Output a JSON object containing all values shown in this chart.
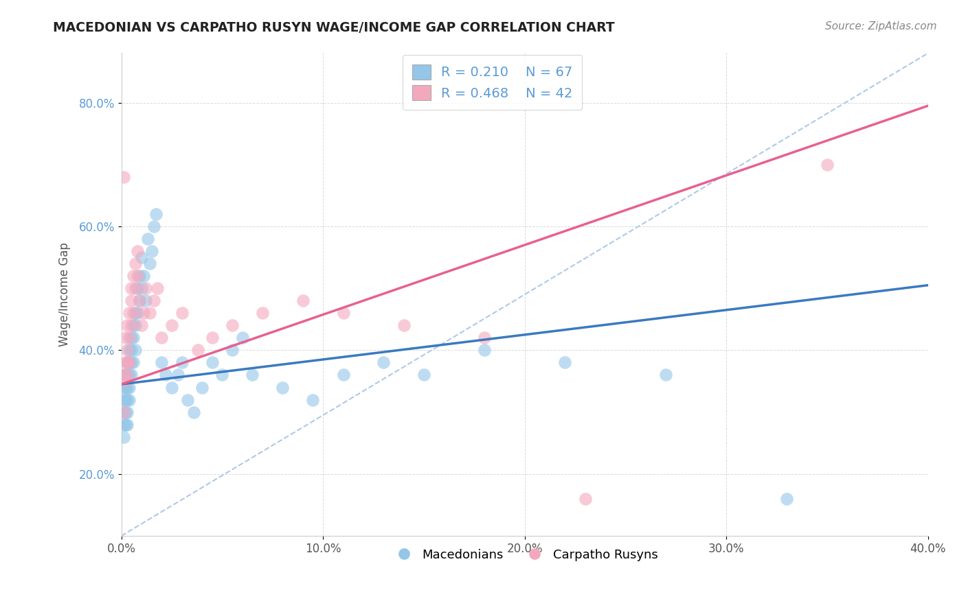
{
  "title": "MACEDONIAN VS CARPATHO RUSYN WAGE/INCOME GAP CORRELATION CHART",
  "source": "Source: ZipAtlas.com",
  "xlabel": "",
  "ylabel": "Wage/Income Gap",
  "xlim": [
    0.0,
    0.4
  ],
  "ylim": [
    0.1,
    0.88
  ],
  "xtick_labels": [
    "0.0%",
    "10.0%",
    "20.0%",
    "30.0%",
    "40.0%"
  ],
  "xtick_vals": [
    0.0,
    0.1,
    0.2,
    0.3,
    0.4
  ],
  "ytick_labels": [
    "20.0%",
    "40.0%",
    "60.0%",
    "80.0%"
  ],
  "ytick_vals": [
    0.2,
    0.4,
    0.6,
    0.8
  ],
  "blue_scatter_color": "#93c6e8",
  "pink_scatter_color": "#f4a8be",
  "blue_line_color": "#3a7abf",
  "pink_line_color": "#e86090",
  "ref_line_color": "#b0c8e8",
  "background_color": "#ffffff",
  "grid_color": "#d0d0d0",
  "blue_line_x0": 0.0,
  "blue_line_y0": 0.345,
  "blue_line_x1": 0.4,
  "blue_line_y1": 0.505,
  "pink_line_x0": 0.0,
  "pink_line_y0": 0.345,
  "pink_line_x1": 0.4,
  "pink_line_y1": 0.795,
  "ref_line_x0": 0.0,
  "ref_line_y0": 0.1,
  "ref_line_x1": 0.4,
  "ref_line_y1": 0.88,
  "macedonians_x": [
    0.001,
    0.001,
    0.001,
    0.001,
    0.001,
    0.001,
    0.002,
    0.002,
    0.002,
    0.002,
    0.002,
    0.003,
    0.003,
    0.003,
    0.003,
    0.003,
    0.003,
    0.004,
    0.004,
    0.004,
    0.004,
    0.004,
    0.005,
    0.005,
    0.005,
    0.005,
    0.006,
    0.006,
    0.006,
    0.007,
    0.007,
    0.007,
    0.008,
    0.008,
    0.009,
    0.009,
    0.01,
    0.01,
    0.011,
    0.012,
    0.013,
    0.014,
    0.015,
    0.016,
    0.017,
    0.02,
    0.022,
    0.025,
    0.028,
    0.03,
    0.033,
    0.036,
    0.04,
    0.045,
    0.05,
    0.055,
    0.06,
    0.065,
    0.08,
    0.095,
    0.11,
    0.13,
    0.15,
    0.18,
    0.22,
    0.27,
    0.33
  ],
  "macedonians_y": [
    0.34,
    0.36,
    0.3,
    0.32,
    0.28,
    0.26,
    0.34,
    0.32,
    0.36,
    0.28,
    0.3,
    0.38,
    0.36,
    0.34,
    0.32,
    0.3,
    0.28,
    0.4,
    0.38,
    0.36,
    0.34,
    0.32,
    0.42,
    0.4,
    0.38,
    0.36,
    0.44,
    0.42,
    0.38,
    0.46,
    0.44,
    0.4,
    0.5,
    0.46,
    0.52,
    0.48,
    0.55,
    0.5,
    0.52,
    0.48,
    0.58,
    0.54,
    0.56,
    0.6,
    0.62,
    0.38,
    0.36,
    0.34,
    0.36,
    0.38,
    0.32,
    0.3,
    0.34,
    0.38,
    0.36,
    0.4,
    0.42,
    0.36,
    0.34,
    0.32,
    0.36,
    0.38,
    0.36,
    0.4,
    0.38,
    0.36,
    0.16
  ],
  "carpatho_x": [
    0.001,
    0.001,
    0.001,
    0.002,
    0.002,
    0.002,
    0.003,
    0.003,
    0.003,
    0.003,
    0.004,
    0.004,
    0.004,
    0.005,
    0.005,
    0.005,
    0.006,
    0.006,
    0.007,
    0.007,
    0.008,
    0.008,
    0.009,
    0.01,
    0.011,
    0.012,
    0.014,
    0.016,
    0.018,
    0.02,
    0.025,
    0.03,
    0.038,
    0.045,
    0.055,
    0.07,
    0.09,
    0.11,
    0.14,
    0.18,
    0.23,
    0.35
  ],
  "carpatho_y": [
    0.68,
    0.36,
    0.3,
    0.38,
    0.35,
    0.42,
    0.4,
    0.38,
    0.44,
    0.36,
    0.42,
    0.46,
    0.38,
    0.48,
    0.44,
    0.5,
    0.46,
    0.52,
    0.5,
    0.54,
    0.52,
    0.56,
    0.48,
    0.44,
    0.46,
    0.5,
    0.46,
    0.48,
    0.5,
    0.42,
    0.44,
    0.46,
    0.4,
    0.42,
    0.44,
    0.46,
    0.48,
    0.46,
    0.44,
    0.42,
    0.16,
    0.7
  ]
}
